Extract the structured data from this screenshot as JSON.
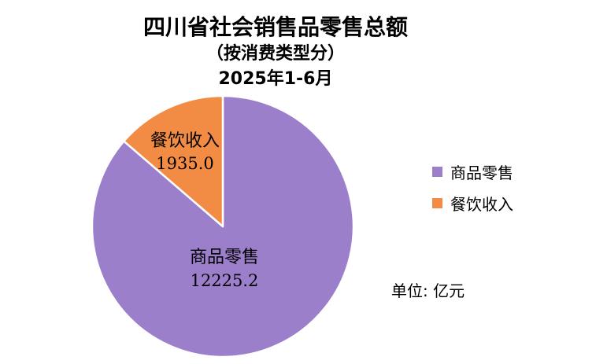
{
  "chart_data": {
    "type": "pie",
    "title": "四川省社会销售品零售总额",
    "subtitle": "（按消费类型分）",
    "period": "2025年1-6月",
    "unit_label": "单位: 亿元",
    "legend_position": "right",
    "slices": [
      {
        "name": "商品零售",
        "value": 12225.2,
        "value_label": "12225.2",
        "color": "#9b7fcb"
      },
      {
        "name": "餐饮收入",
        "value": 1935.0,
        "value_label": "1935.0",
        "color": "#f28c44"
      }
    ]
  }
}
